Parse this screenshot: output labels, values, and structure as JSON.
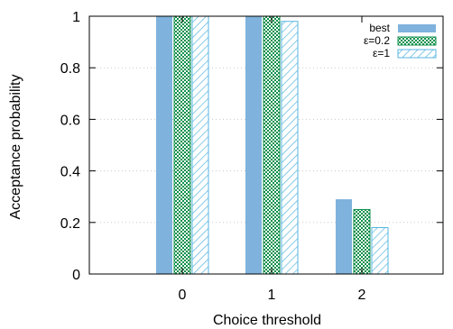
{
  "chart_data": {
    "type": "bar",
    "xlabel": "Choice threshold",
    "ylabel": "Acceptance probability",
    "categories": [
      "0",
      "1",
      "2"
    ],
    "ylim": [
      0,
      1
    ],
    "yticks": [
      "0",
      "0.2",
      "0.4",
      "0.6",
      "0.8",
      "1"
    ],
    "ytick_values": [
      0,
      0.2,
      0.4,
      0.6,
      0.8,
      1
    ],
    "grid": "horizontal dotted",
    "legend_position": "top-right",
    "series": [
      {
        "name": "best",
        "values": [
          1.0,
          1.0,
          0.29
        ],
        "color": "#7fb2dc",
        "pattern": "solid"
      },
      {
        "name": "ε=0.2",
        "values": [
          1.0,
          1.0,
          0.25
        ],
        "color": "#0b8f4a",
        "pattern": "checker"
      },
      {
        "name": "ε=1",
        "values": [
          1.0,
          0.98,
          0.18
        ],
        "color": "#55b5e0",
        "pattern": "hatch"
      }
    ]
  }
}
